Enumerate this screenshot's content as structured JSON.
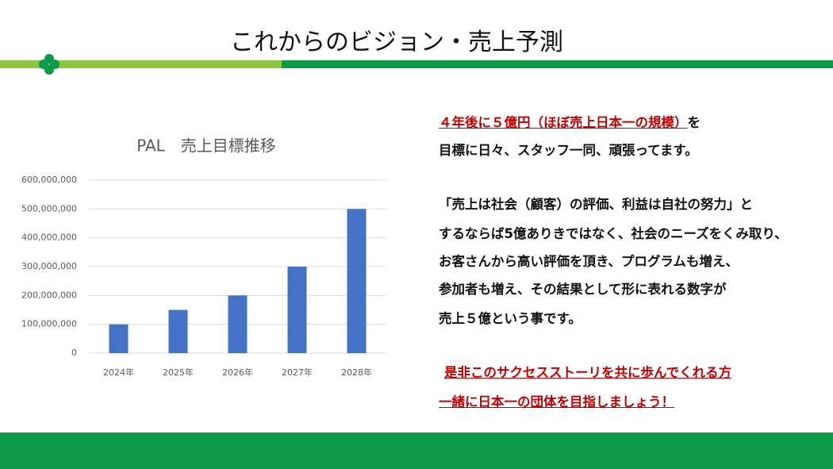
{
  "title": "これからのビジョン・売上予測",
  "chart_data": {
    "type": "bar",
    "title": "PAL　売上目標推移",
    "categories": [
      "2024年",
      "2025年",
      "2026年",
      "2027年",
      "2028年"
    ],
    "values": [
      100000000,
      150000000,
      200000000,
      300000000,
      500000000
    ],
    "color": "#4472c4",
    "ylim": [
      0,
      600000000
    ],
    "yticks": [
      0,
      {
        "value": 100000000,
        "label": "100,000,000"
      },
      {
        "value": 200000000,
        "label": "200,000,000"
      },
      {
        "value": 300000000,
        "label": "300,000,000"
      },
      {
        "value": 400000000,
        "label": "400,000,000"
      },
      {
        "value": 500000000,
        "label": "500,000,000"
      },
      {
        "value": 600000000,
        "label": "600,000,000"
      }
    ],
    "grid": true
  },
  "text": {
    "goal": {
      "highlight": "４年後に５億円（ほぼ売上日本一の規模）",
      "rest": "を",
      "line2": "目標に日々、スタッフ一同、頑張ってます。"
    },
    "philosophy": [
      "「売上は社会（顧客）の評価、利益は自社の努力」と",
      "するならば5億ありきではなく、社会のニーズをくみ取り、",
      "お客さんから高い評価を頂き、プログラムも増え、",
      "参加者も増え、その結果として形に表れる数字が",
      "売上５億という事です。"
    ],
    "call": [
      "是非このサクセスストーリを共に歩んでくれる方",
      "一緒に日本一の団体を目指しましょう！"
    ]
  }
}
